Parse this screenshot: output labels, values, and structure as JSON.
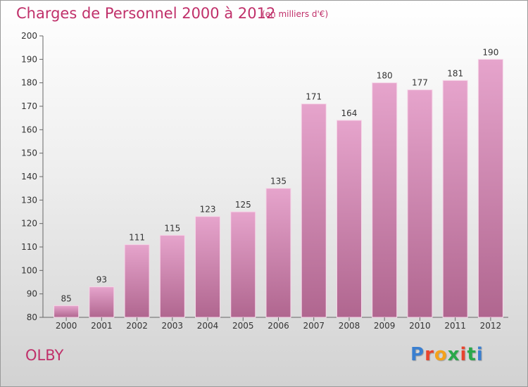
{
  "header": {
    "title": "Charges de Personnel 2000 à 2012",
    "subtitle": "(en milliers d'€)"
  },
  "place": "OLBY",
  "logo": {
    "letters": [
      "P",
      "r",
      "o",
      "x",
      "i",
      "t",
      "i"
    ]
  },
  "colors": {
    "accent": "#c0306a",
    "bar_top": "#e6a4cc",
    "bar_bottom": "#b0668f",
    "logo_letters": [
      "#3a7fd0",
      "#e8442e",
      "#f4a21b",
      "#2aa84a",
      "#e8442e",
      "#2aa84a",
      "#3a7fd0"
    ]
  },
  "chart_data": {
    "type": "bar",
    "title": "Charges de Personnel 2000 à 2012",
    "subtitle": "(en milliers d'€)",
    "categories": [
      "2000",
      "2001",
      "2002",
      "2003",
      "2004",
      "2005",
      "2006",
      "2007",
      "2008",
      "2009",
      "2010",
      "2011",
      "2012"
    ],
    "values": [
      85,
      93,
      111,
      115,
      123,
      125,
      135,
      171,
      164,
      180,
      177,
      181,
      190
    ],
    "ylim": [
      80,
      200
    ],
    "yticks": [
      80,
      90,
      100,
      110,
      120,
      130,
      140,
      150,
      160,
      170,
      180,
      190,
      200
    ],
    "grid": false,
    "xlabel": "",
    "ylabel": ""
  }
}
